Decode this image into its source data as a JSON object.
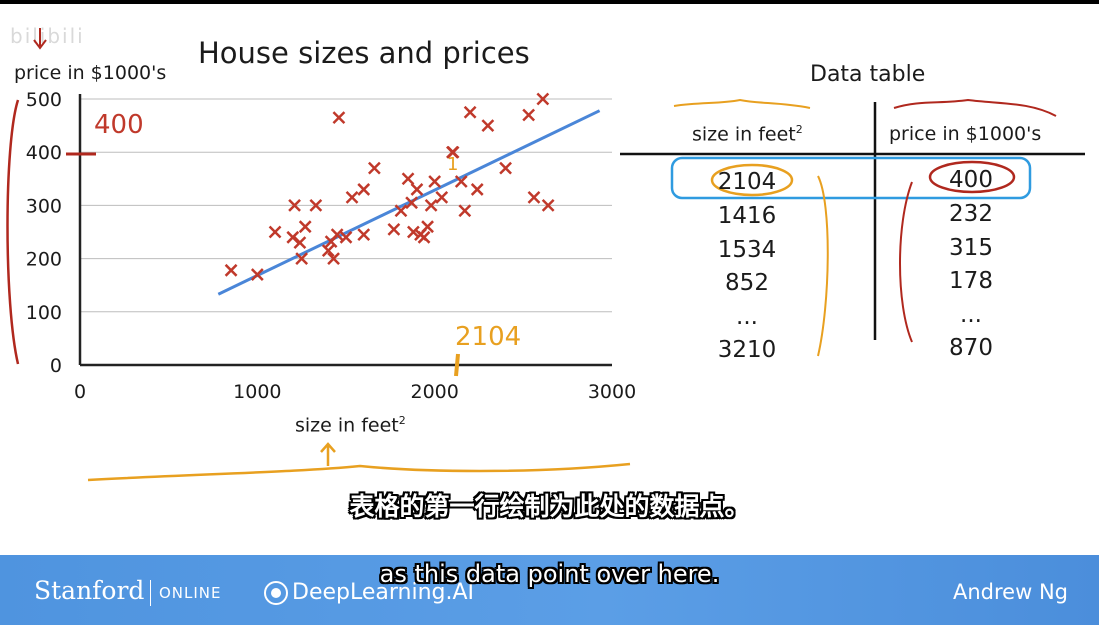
{
  "watermark": "bilibili",
  "chart_data": {
    "type": "scatter",
    "title": "House sizes and prices",
    "xlabel": "size in feet",
    "xlabel_sup": "2",
    "ylabel": "price in $1000's",
    "xlim": [
      0,
      3000
    ],
    "ylim": [
      0,
      500
    ],
    "xticks": [
      0,
      1000,
      2000,
      3000
    ],
    "yticks": [
      0,
      100,
      200,
      300,
      400,
      500
    ],
    "grid": true,
    "marker": "x",
    "marker_color": "#c0392b",
    "line_color": "#4a86d8",
    "points": [
      {
        "x": 852,
        "y": 178
      },
      {
        "x": 1000,
        "y": 170
      },
      {
        "x": 1100,
        "y": 250
      },
      {
        "x": 1200,
        "y": 240
      },
      {
        "x": 1210,
        "y": 300
      },
      {
        "x": 1240,
        "y": 230
      },
      {
        "x": 1250,
        "y": 200
      },
      {
        "x": 1270,
        "y": 260
      },
      {
        "x": 1330,
        "y": 300
      },
      {
        "x": 1400,
        "y": 215
      },
      {
        "x": 1416,
        "y": 232
      },
      {
        "x": 1430,
        "y": 200
      },
      {
        "x": 1450,
        "y": 245
      },
      {
        "x": 1460,
        "y": 465
      },
      {
        "x": 1500,
        "y": 240
      },
      {
        "x": 1534,
        "y": 315
      },
      {
        "x": 1600,
        "y": 330
      },
      {
        "x": 1600,
        "y": 245
      },
      {
        "x": 1660,
        "y": 370
      },
      {
        "x": 1770,
        "y": 255
      },
      {
        "x": 1810,
        "y": 290
      },
      {
        "x": 1850,
        "y": 350
      },
      {
        "x": 1870,
        "y": 305
      },
      {
        "x": 1880,
        "y": 250
      },
      {
        "x": 1900,
        "y": 330
      },
      {
        "x": 1920,
        "y": 245
      },
      {
        "x": 1940,
        "y": 240
      },
      {
        "x": 1960,
        "y": 260
      },
      {
        "x": 1980,
        "y": 300
      },
      {
        "x": 2000,
        "y": 345
      },
      {
        "x": 2040,
        "y": 315
      },
      {
        "x": 2100,
        "y": 400
      },
      {
        "x": 2104,
        "y": 400
      },
      {
        "x": 2150,
        "y": 345
      },
      {
        "x": 2170,
        "y": 290
      },
      {
        "x": 2200,
        "y": 475
      },
      {
        "x": 2240,
        "y": 330
      },
      {
        "x": 2300,
        "y": 450
      },
      {
        "x": 2400,
        "y": 370
      },
      {
        "x": 2530,
        "y": 470
      },
      {
        "x": 2560,
        "y": 315
      },
      {
        "x": 2610,
        "y": 500
      },
      {
        "x": 2640,
        "y": 300
      }
    ],
    "fit_line": {
      "x": [
        780,
        2930
      ],
      "y": [
        133,
        478
      ]
    }
  },
  "annotations": {
    "y_mark": "400",
    "x_mark": "2104",
    "point_mark": "1"
  },
  "data_table": {
    "title": "Data table",
    "col1_header": "size in feet",
    "col1_sup": "2",
    "col2_header": "price in $1000's",
    "rows": [
      {
        "size": "2104",
        "price": "400"
      },
      {
        "size": "1416",
        "price": "232"
      },
      {
        "size": "1534",
        "price": "315"
      },
      {
        "size": "852",
        "price": "178"
      },
      {
        "size": "...",
        "price": "..."
      },
      {
        "size": "3210",
        "price": "870"
      }
    ]
  },
  "subtitles": {
    "zh": "表格的第一行绘制为此处的数据点。",
    "en": "as this data point over here."
  },
  "footer": {
    "stanford": "Stanford",
    "online": "ONLINE",
    "deeplearning": "DeepLearning.AI",
    "instructor": "Andrew Ng"
  }
}
